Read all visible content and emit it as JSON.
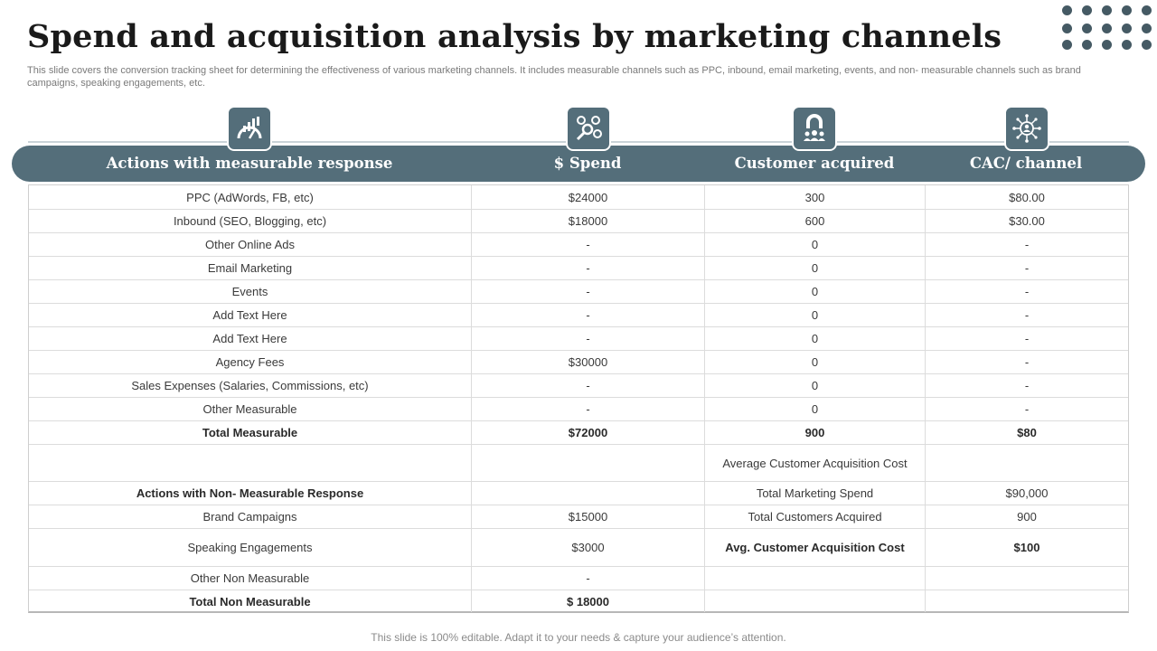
{
  "title": "Spend and acquisition analysis by marketing channels",
  "description": "This slide covers the conversion tracking sheet for determining the effectiveness of various marketing channels. It includes measurable channels such as PPC, inbound, email marketing, events, and non- measurable channels such as brand campaigns, speaking engagements, etc.",
  "header": {
    "col1": "Actions with measurable response",
    "col2": "$ Spend",
    "col3": "Customer acquired",
    "col4": "CAC/ channel"
  },
  "icons": {
    "col1": "gauge-chart-icon",
    "col2": "money-analysis-icon",
    "col3": "customer-magnet-icon",
    "col4": "network-person-icon"
  },
  "rows": [
    [
      "PPC (AdWords, FB, etc)",
      "$24000",
      "300",
      "$80.00"
    ],
    [
      "Inbound (SEO, Blogging, etc)",
      "$18000",
      "600",
      "$30.00"
    ],
    [
      "Other Online Ads",
      "-",
      "0",
      "-"
    ],
    [
      "Email Marketing",
      "-",
      "0",
      "-"
    ],
    [
      "Events",
      "-",
      "0",
      "-"
    ],
    [
      "Add Text Here",
      "-",
      "0",
      "-"
    ],
    [
      "Add Text Here",
      "-",
      "0",
      "-"
    ],
    [
      "Agency Fees",
      "$30000",
      "0",
      "-"
    ],
    [
      "Sales Expenses (Salaries, Commissions, etc)",
      "-",
      "0",
      "-"
    ],
    [
      "Other Measurable",
      "-",
      "0",
      "-"
    ],
    [
      "Total Measurable",
      "$72000",
      "900",
      "$80"
    ],
    [
      "",
      "",
      "Average  Customer Acquisition Cost",
      ""
    ],
    [
      "Actions with Non- Measurable Response",
      "",
      "Total Marketing Spend",
      "$90,000"
    ],
    [
      "Brand Campaigns",
      "$15000",
      "Total Customers Acquired",
      "900"
    ],
    [
      "Speaking Engagements",
      "$3000",
      "Avg. Customer Acquisition Cost",
      "$100"
    ],
    [
      "Other Non Measurable",
      "-",
      "",
      ""
    ],
    [
      "Total Non Measurable",
      "$ 18000",
      "",
      ""
    ]
  ],
  "colors": {
    "accent": "#546e7a",
    "dots": "#455a64"
  },
  "footer": "This slide is 100% editable. Adapt it to your needs & capture your audience’s attention."
}
